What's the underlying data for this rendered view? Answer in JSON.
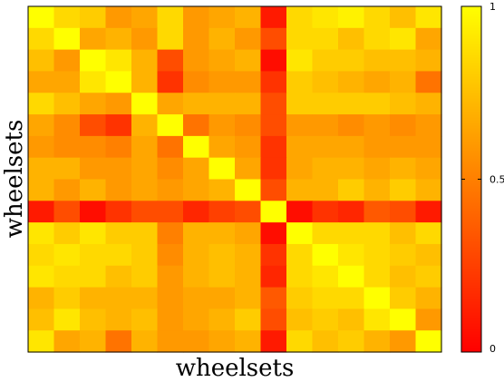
{
  "chart_data": {
    "type": "heatmap",
    "title": "",
    "xlabel": "wheelsets",
    "ylabel": "wheelsets",
    "colormap": "autumn (red to yellow)",
    "colormap_stops": [
      "#ff0000",
      "#ffff00"
    ],
    "clim": [
      0,
      1
    ],
    "colorbar_ticks": [
      {
        "value": 0,
        "label": "0"
      },
      {
        "value": 0.5,
        "label": "0.5"
      },
      {
        "value": 1,
        "label": "1"
      }
    ],
    "rows": 16,
    "cols": 16,
    "values": [
      [
        1.0,
        0.85,
        0.8,
        0.6,
        0.65,
        0.85,
        0.6,
        0.65,
        0.7,
        0.1,
        0.85,
        0.9,
        0.95,
        0.85,
        0.75,
        0.9
      ],
      [
        0.85,
        1.0,
        0.65,
        0.7,
        0.6,
        0.85,
        0.6,
        0.7,
        0.6,
        0.3,
        0.85,
        0.85,
        0.75,
        0.85,
        0.9,
        0.65
      ],
      [
        0.75,
        0.6,
        1.0,
        0.9,
        0.7,
        0.3,
        0.6,
        0.65,
        0.7,
        0.05,
        0.9,
        0.8,
        0.8,
        0.75,
        0.75,
        0.7
      ],
      [
        0.65,
        0.65,
        0.9,
        1.0,
        0.7,
        0.2,
        0.55,
        0.6,
        0.6,
        0.2,
        0.8,
        0.75,
        0.7,
        0.65,
        0.7,
        0.45
      ],
      [
        0.85,
        0.75,
        0.65,
        0.6,
        1.0,
        0.65,
        0.7,
        0.7,
        0.7,
        0.3,
        0.8,
        0.8,
        0.8,
        0.8,
        0.75,
        0.7
      ],
      [
        0.65,
        0.55,
        0.3,
        0.2,
        0.7,
        1.0,
        0.45,
        0.6,
        0.55,
        0.3,
        0.6,
        0.6,
        0.55,
        0.6,
        0.55,
        0.6
      ],
      [
        0.6,
        0.55,
        0.55,
        0.5,
        0.65,
        0.45,
        1.0,
        0.65,
        0.6,
        0.2,
        0.65,
        0.65,
        0.65,
        0.6,
        0.6,
        0.6
      ],
      [
        0.7,
        0.7,
        0.6,
        0.6,
        0.65,
        0.55,
        0.65,
        1.0,
        0.65,
        0.2,
        0.65,
        0.7,
        0.7,
        0.65,
        0.7,
        0.65
      ],
      [
        0.7,
        0.6,
        0.7,
        0.6,
        0.65,
        0.6,
        0.65,
        0.7,
        1.0,
        0.3,
        0.7,
        0.7,
        0.8,
        0.7,
        0.8,
        0.7
      ],
      [
        0.1,
        0.3,
        0.05,
        0.2,
        0.3,
        0.3,
        0.15,
        0.25,
        0.3,
        1.0,
        0.05,
        0.2,
        0.15,
        0.35,
        0.3,
        0.1
      ],
      [
        0.9,
        0.8,
        0.9,
        0.8,
        0.8,
        0.5,
        0.7,
        0.7,
        0.65,
        0.05,
        1.0,
        0.85,
        0.85,
        0.85,
        0.75,
        0.85
      ],
      [
        0.85,
        0.9,
        0.85,
        0.85,
        0.8,
        0.55,
        0.7,
        0.75,
        0.7,
        0.2,
        0.85,
        1.0,
        0.9,
        0.85,
        0.8,
        0.75
      ],
      [
        0.9,
        0.85,
        0.85,
        0.75,
        0.8,
        0.6,
        0.7,
        0.75,
        0.7,
        0.15,
        0.85,
        0.9,
        1.0,
        0.85,
        0.75,
        0.8
      ],
      [
        0.7,
        0.8,
        0.7,
        0.7,
        0.7,
        0.6,
        0.65,
        0.65,
        0.7,
        0.35,
        0.8,
        0.85,
        0.85,
        1.0,
        0.8,
        0.7
      ],
      [
        0.75,
        0.9,
        0.75,
        0.7,
        0.75,
        0.6,
        0.65,
        0.7,
        0.8,
        0.3,
        0.75,
        0.8,
        0.75,
        0.9,
        1.0,
        0.6
      ],
      [
        0.9,
        0.65,
        0.7,
        0.45,
        0.7,
        0.6,
        0.6,
        0.65,
        0.7,
        0.1,
        0.85,
        0.75,
        0.8,
        0.7,
        0.6,
        1.0
      ]
    ]
  }
}
